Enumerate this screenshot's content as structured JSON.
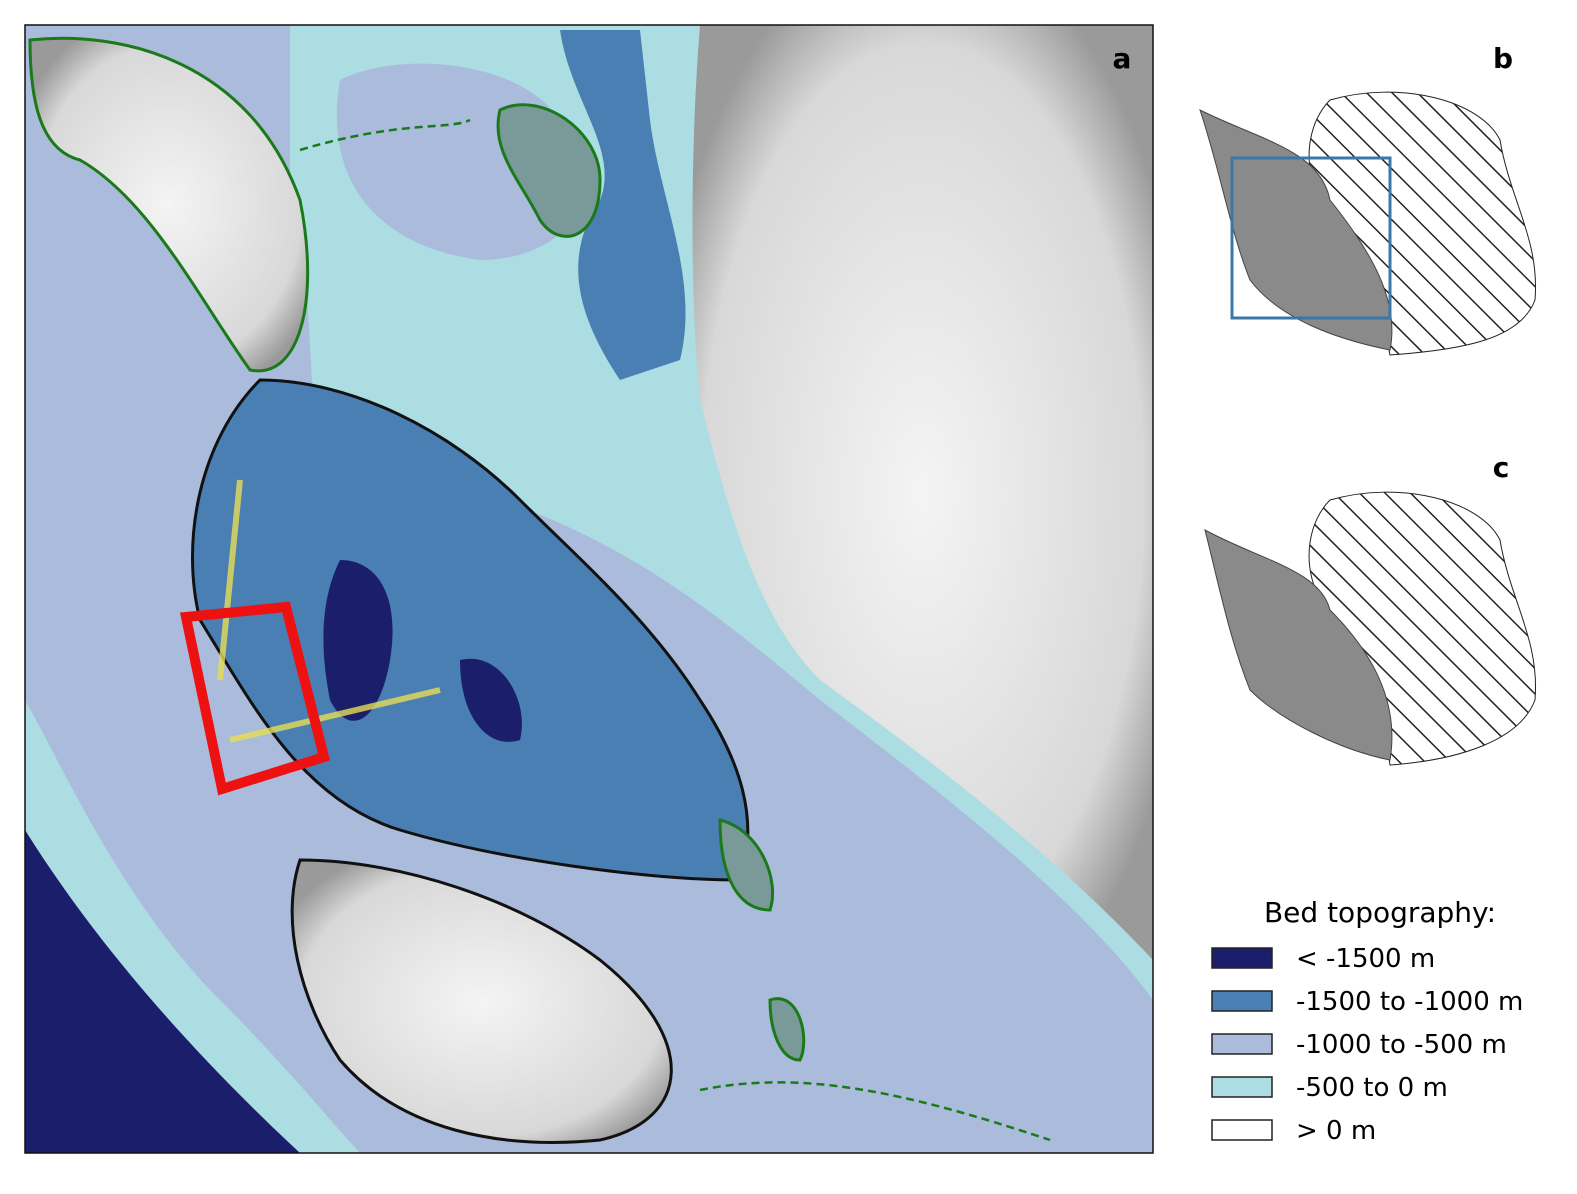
{
  "panels": {
    "a": {
      "label": "a"
    },
    "b": {
      "label": "b"
    },
    "c": {
      "label": "c"
    }
  },
  "legend": {
    "title": "Bed topography:",
    "entries": [
      {
        "label": "< -1500 m",
        "color": "#1b1f6b"
      },
      {
        "label": "-1500 to -1000 m",
        "color": "#4a7fb3"
      },
      {
        "label": "-1000 to -500 m",
        "color": "#aabbdc"
      },
      {
        "label": "-500 to 0 m",
        "color": "#abdde2"
      },
      {
        "label": "> 0 m",
        "color": "#ffffff"
      }
    ]
  }
}
